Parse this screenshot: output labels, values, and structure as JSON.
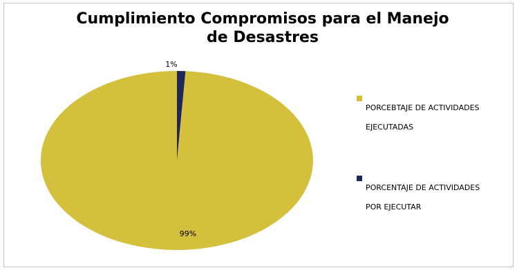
{
  "colors": {
    "slice_executed": "#D4C03C",
    "slice_pending": "#1F2855"
  },
  "chart_data": {
    "type": "pie",
    "title": "Cumplimiento Compromisos para el Manejo de Desastres",
    "title_lines": [
      "Cumplimiento Compromisos para el Manejo",
      "de Desastres"
    ],
    "legend_position": "right",
    "slices": [
      {
        "label": "PORCEBTAJE DE ACTIVIDADES EJECUTADAS",
        "label_lines": [
          "PORCEBTAJE DE ACTIVIDADES",
          "EJECUTADAS"
        ],
        "value": 99,
        "data_label": "99%",
        "color": "#D4C03C"
      },
      {
        "label": "PORCENTAJE DE ACTIVIDADES POR EJECUTAR",
        "label_lines": [
          "PORCENTAJE DE ACTIVIDADES",
          "POR EJECUTAR"
        ],
        "value": 1,
        "data_label": "1%",
        "color": "#1F2855"
      }
    ]
  }
}
